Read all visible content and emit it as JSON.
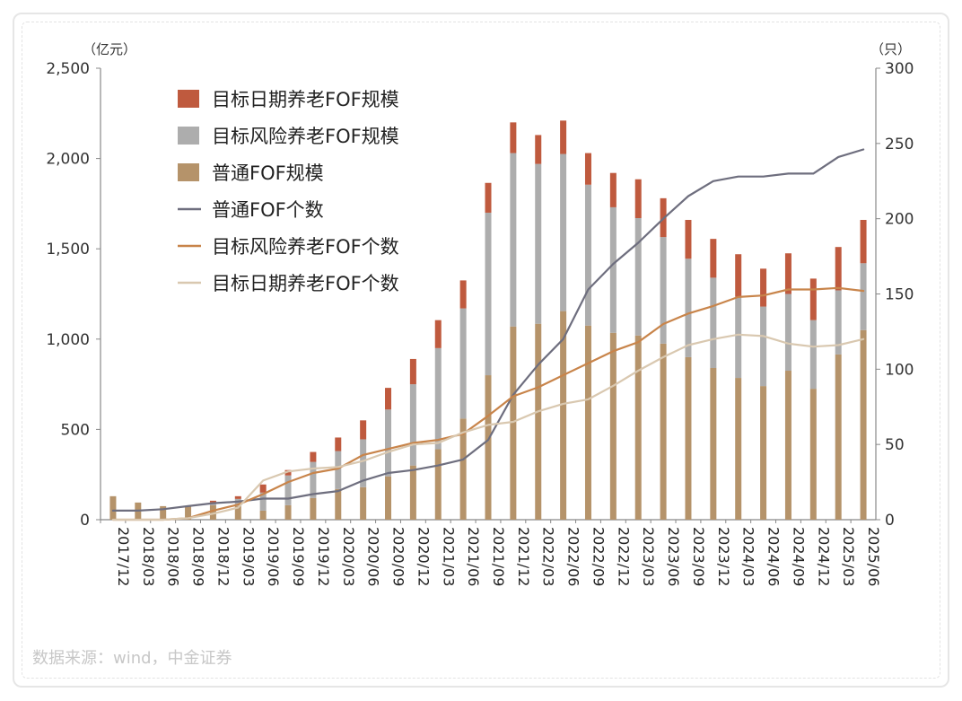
{
  "chart_data": {
    "type": "bar+line",
    "left_unit": "（亿元）",
    "right_unit": "（只）",
    "left_ticks": [
      "0",
      "500",
      "1,000",
      "1,500",
      "2,000",
      "2,500"
    ],
    "left_tick_values": [
      0,
      500,
      1000,
      1500,
      2000,
      2500
    ],
    "right_ticks": [
      "0",
      "50",
      "100",
      "150",
      "200",
      "250",
      "300"
    ],
    "right_tick_values": [
      0,
      50,
      100,
      150,
      200,
      250,
      300
    ],
    "ylim_left": [
      0,
      2500
    ],
    "ylim_right": [
      0,
      300
    ],
    "categories": [
      "2017/12",
      "2018/03",
      "2018/06",
      "2018/09",
      "2018/12",
      "2019/03",
      "2019/06",
      "2019/09",
      "2019/12",
      "2020/03",
      "2020/06",
      "2020/09",
      "2020/12",
      "2021/03",
      "2021/06",
      "2021/09",
      "2021/12",
      "2022/03",
      "2022/06",
      "2022/09",
      "2022/12",
      "2023/03",
      "2023/06",
      "2023/09",
      "2023/12",
      "2024/03",
      "2024/06",
      "2024/09",
      "2024/12",
      "2025/03",
      "2025/06"
    ],
    "bar_series": [
      {
        "name": "普通FOF规模",
        "color": "#b5936a",
        "values": [
          130,
          95,
          75,
          75,
          80,
          75,
          50,
          80,
          120,
          170,
          180,
          240,
          300,
          390,
          560,
          800,
          1070,
          1085,
          1155,
          1075,
          1035,
          1020,
          975,
          900,
          840,
          785,
          740,
          825,
          725,
          915,
          1050
        ]
      },
      {
        "name": "目标风险养老FOF规模",
        "color": "#adadad",
        "values": [
          0,
          0,
          0,
          0,
          15,
          40,
          100,
          165,
          200,
          210,
          265,
          370,
          450,
          560,
          610,
          900,
          960,
          885,
          870,
          780,
          695,
          650,
          590,
          545,
          500,
          450,
          440,
          425,
          380,
          355,
          370
        ]
      },
      {
        "name": "目标日期养老FOF规模",
        "color": "#bf5a3e",
        "values": [
          0,
          0,
          0,
          0,
          10,
          15,
          45,
          30,
          55,
          75,
          105,
          120,
          140,
          155,
          155,
          165,
          170,
          160,
          185,
          175,
          190,
          215,
          215,
          215,
          215,
          235,
          210,
          225,
          230,
          240,
          240
        ]
      }
    ],
    "line_series": [
      {
        "name": "普通FOF个数",
        "color": "#6e6e7e",
        "values": [
          6,
          6,
          7,
          9,
          11,
          12,
          14,
          14,
          17,
          19,
          26,
          31,
          33,
          36,
          40,
          53,
          83,
          103,
          120,
          153,
          170,
          184,
          200,
          215,
          225,
          228,
          228,
          230,
          230,
          241,
          246
        ]
      },
      {
        "name": "目标风险养老FOF个数",
        "color": "#c8844a",
        "values": [
          0,
          0,
          0,
          1,
          6,
          10,
          17,
          25,
          31,
          34,
          43,
          47,
          51,
          53,
          57,
          69,
          82,
          88,
          96,
          104,
          112,
          118,
          130,
          137,
          142,
          148,
          149,
          153,
          153,
          154,
          152
        ]
      },
      {
        "name": "目标日期养老FOF个数",
        "color": "#d9c8b0",
        "values": [
          0,
          0,
          0,
          1,
          4,
          8,
          26,
          32,
          34,
          35,
          39,
          45,
          50,
          51,
          58,
          63,
          65,
          72,
          77,
          80,
          89,
          99,
          108,
          116,
          120,
          123,
          122,
          117,
          115,
          116,
          120
        ]
      }
    ],
    "legend": [
      {
        "label": "目标日期养老FOF规模",
        "kind": "bar",
        "color": "#bf5a3e"
      },
      {
        "label": "目标风险养老FOF规模",
        "kind": "bar",
        "color": "#adadad"
      },
      {
        "label": "普通FOF规模",
        "kind": "bar",
        "color": "#b5936a"
      },
      {
        "label": "普通FOF个数",
        "kind": "line",
        "color": "#6e6e7e"
      },
      {
        "label": "目标风险养老FOF个数",
        "kind": "line",
        "color": "#c8844a"
      },
      {
        "label": "目标日期养老FOF个数",
        "kind": "line",
        "color": "#d9c8b0"
      }
    ],
    "legend_position": "top-left"
  },
  "source": "数据来源：wind，中金证券"
}
